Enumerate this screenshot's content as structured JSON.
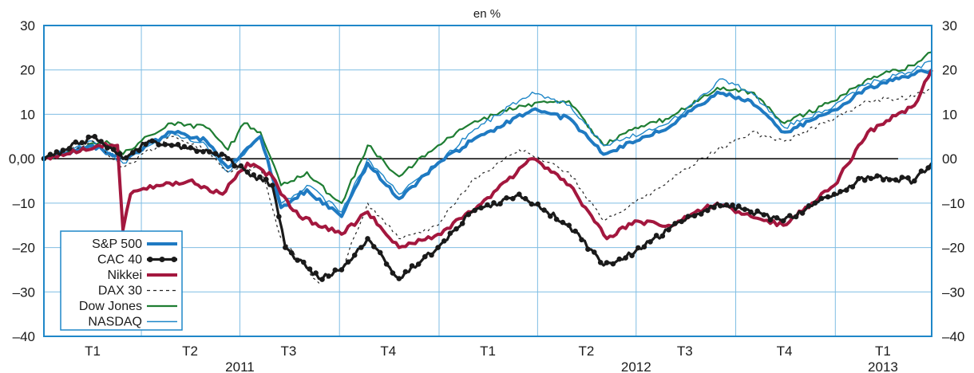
{
  "chart_data": {
    "type": "line",
    "unit_label": "en %",
    "ylim": [
      -40,
      30
    ],
    "y_ticks": [
      {
        "value": 30,
        "left": "30",
        "right": "30"
      },
      {
        "value": 20,
        "left": "20",
        "right": "20"
      },
      {
        "value": 10,
        "left": "10",
        "right": "10"
      },
      {
        "value": 0,
        "left": "0,00",
        "right": "00"
      },
      {
        "value": -10,
        "left": "–10",
        "right": "–10"
      },
      {
        "value": -20,
        "left": "–20",
        "right": "–20"
      },
      {
        "value": -30,
        "left": "–30",
        "right": "–30"
      },
      {
        "value": -40,
        "left": "–40",
        "right": "–40"
      }
    ],
    "x_range": [
      "2011-01-01",
      "2013-03-31"
    ],
    "quarter_labels": [
      {
        "label": "T1",
        "mid": "2011-02-15"
      },
      {
        "label": "T2",
        "mid": "2011-05-16"
      },
      {
        "label": "T3",
        "mid": "2011-08-15"
      },
      {
        "label": "T4",
        "mid": "2011-11-15"
      },
      {
        "label": "T1",
        "mid": "2012-02-15"
      },
      {
        "label": "T2",
        "mid": "2012-05-16"
      },
      {
        "label": "T3",
        "mid": "2012-08-15"
      },
      {
        "label": "T4",
        "mid": "2012-11-15"
      },
      {
        "label": "T1",
        "mid": "2013-02-14"
      }
    ],
    "year_labels": [
      {
        "label": "2011",
        "mid": "2011-07-01"
      },
      {
        "label": "2012",
        "mid": "2012-07-01"
      },
      {
        "label": "2013",
        "mid": "2013-02-14"
      }
    ],
    "grid": true,
    "zero_line": true,
    "legend_position": "bottom-left",
    "series": [
      {
        "name": "Dow Jones",
        "color": "#1e7d32",
        "style": "solid",
        "points": [
          [
            "2011-01-01",
            0
          ],
          [
            "2011-02-01",
            2
          ],
          [
            "2011-02-28",
            4
          ],
          [
            "2011-03-15",
            1
          ],
          [
            "2011-04-01",
            4
          ],
          [
            "2011-04-29",
            8
          ],
          [
            "2011-05-31",
            7
          ],
          [
            "2011-06-20",
            2
          ],
          [
            "2011-07-05",
            8
          ],
          [
            "2011-07-20",
            6
          ],
          [
            "2011-08-08",
            -6
          ],
          [
            "2011-09-01",
            -3
          ],
          [
            "2011-09-22",
            -8
          ],
          [
            "2011-10-03",
            -10
          ],
          [
            "2011-10-27",
            3
          ],
          [
            "2011-11-25",
            -4
          ],
          [
            "2011-12-31",
            3
          ],
          [
            "2012-01-31",
            8
          ],
          [
            "2012-03-15",
            12
          ],
          [
            "2012-04-30",
            13
          ],
          [
            "2012-06-01",
            3
          ],
          [
            "2012-06-30",
            7
          ],
          [
            "2012-07-31",
            9
          ],
          [
            "2012-09-14",
            16
          ],
          [
            "2012-10-15",
            15
          ],
          [
            "2012-11-15",
            8
          ],
          [
            "2012-12-31",
            13
          ],
          [
            "2013-01-31",
            18
          ],
          [
            "2013-03-15",
            21
          ],
          [
            "2013-03-31",
            24
          ]
        ]
      },
      {
        "name": "NASDAQ",
        "color": "#1f87c8",
        "style": "thin",
        "points": [
          [
            "2011-01-01",
            0
          ],
          [
            "2011-02-15",
            4
          ],
          [
            "2011-03-15",
            -1
          ],
          [
            "2011-04-29",
            6
          ],
          [
            "2011-05-31",
            3
          ],
          [
            "2011-06-20",
            -3
          ],
          [
            "2011-07-20",
            5
          ],
          [
            "2011-08-08",
            -10
          ],
          [
            "2011-09-01",
            -6
          ],
          [
            "2011-10-03",
            -12
          ],
          [
            "2011-10-27",
            0
          ],
          [
            "2011-11-25",
            -8
          ],
          [
            "2011-12-31",
            -1
          ],
          [
            "2012-01-31",
            6
          ],
          [
            "2012-03-27",
            15
          ],
          [
            "2012-05-01",
            12
          ],
          [
            "2012-06-01",
            3
          ],
          [
            "2012-07-31",
            8
          ],
          [
            "2012-09-19",
            18
          ],
          [
            "2012-10-15",
            15
          ],
          [
            "2012-11-15",
            7
          ],
          [
            "2012-12-31",
            12
          ],
          [
            "2013-01-31",
            17
          ],
          [
            "2013-03-15",
            20
          ],
          [
            "2013-03-31",
            22
          ]
        ]
      },
      {
        "name": "S&P 500",
        "color": "#1f7ac2",
        "style": "thick",
        "points": [
          [
            "2011-01-01",
            0
          ],
          [
            "2011-02-15",
            3
          ],
          [
            "2011-03-15",
            0
          ],
          [
            "2011-04-29",
            6
          ],
          [
            "2011-05-31",
            4
          ],
          [
            "2011-06-20",
            -2
          ],
          [
            "2011-07-20",
            5
          ],
          [
            "2011-08-08",
            -11
          ],
          [
            "2011-09-01",
            -7
          ],
          [
            "2011-10-03",
            -13
          ],
          [
            "2011-10-27",
            -1
          ],
          [
            "2011-11-25",
            -9
          ],
          [
            "2011-12-31",
            -1
          ],
          [
            "2012-01-31",
            4
          ],
          [
            "2012-03-27",
            11
          ],
          [
            "2012-05-01",
            9
          ],
          [
            "2012-06-01",
            1
          ],
          [
            "2012-07-31",
            7
          ],
          [
            "2012-09-14",
            15
          ],
          [
            "2012-10-15",
            13
          ],
          [
            "2012-11-15",
            6
          ],
          [
            "2012-12-31",
            11
          ],
          [
            "2013-01-31",
            16
          ],
          [
            "2013-03-15",
            19
          ],
          [
            "2013-03-31",
            20
          ]
        ]
      },
      {
        "name": "DAX 30",
        "color": "#222222",
        "style": "dashed",
        "points": [
          [
            "2011-01-01",
            0
          ],
          [
            "2011-02-15",
            4
          ],
          [
            "2011-03-15",
            -2
          ],
          [
            "2011-04-29",
            5
          ],
          [
            "2011-05-31",
            2
          ],
          [
            "2011-06-20",
            -3
          ],
          [
            "2011-07-20",
            -2
          ],
          [
            "2011-08-08",
            -18
          ],
          [
            "2011-09-12",
            -28
          ],
          [
            "2011-10-03",
            -25
          ],
          [
            "2011-10-27",
            -10
          ],
          [
            "2011-11-25",
            -18
          ],
          [
            "2011-12-31",
            -15
          ],
          [
            "2012-01-31",
            -5
          ],
          [
            "2012-03-15",
            2
          ],
          [
            "2012-04-30",
            -3
          ],
          [
            "2012-06-01",
            -14
          ],
          [
            "2012-06-30",
            -10
          ],
          [
            "2012-07-31",
            -5
          ],
          [
            "2012-09-14",
            2
          ],
          [
            "2012-10-15",
            6
          ],
          [
            "2012-11-15",
            4
          ],
          [
            "2012-12-31",
            9
          ],
          [
            "2013-01-31",
            13
          ],
          [
            "2013-03-15",
            14
          ],
          [
            "2013-03-31",
            16
          ]
        ]
      },
      {
        "name": "Nikkei",
        "color": "#a3173e",
        "style": "thick",
        "points": [
          [
            "2011-01-01",
            0
          ],
          [
            "2011-02-21",
            3
          ],
          [
            "2011-03-10",
            3
          ],
          [
            "2011-03-15",
            -16
          ],
          [
            "2011-03-22",
            -8
          ],
          [
            "2011-04-15",
            -6
          ],
          [
            "2011-05-15",
            -5
          ],
          [
            "2011-06-15",
            -8
          ],
          [
            "2011-07-08",
            -1
          ],
          [
            "2011-07-31",
            -4
          ],
          [
            "2011-08-08",
            -8
          ],
          [
            "2011-08-25",
            -13
          ],
          [
            "2011-10-03",
            -17
          ],
          [
            "2011-10-27",
            -12
          ],
          [
            "2011-11-25",
            -20
          ],
          [
            "2011-12-31",
            -17
          ],
          [
            "2012-01-31",
            -12
          ],
          [
            "2012-03-27",
            0
          ],
          [
            "2012-05-01",
            -6
          ],
          [
            "2012-06-04",
            -18
          ],
          [
            "2012-06-30",
            -14
          ],
          [
            "2012-07-31",
            -15
          ],
          [
            "2012-09-14",
            -10
          ],
          [
            "2012-10-15",
            -13
          ],
          [
            "2012-11-14",
            -15
          ],
          [
            "2012-12-31",
            -6
          ],
          [
            "2013-01-31",
            6
          ],
          [
            "2013-03-15",
            12
          ],
          [
            "2013-03-31",
            20
          ]
        ]
      },
      {
        "name": "CAC 40",
        "color": "#1a1a1a",
        "style": "dots",
        "points": [
          [
            "2011-01-01",
            0
          ],
          [
            "2011-02-17",
            5
          ],
          [
            "2011-03-15",
            0
          ],
          [
            "2011-04-08",
            4
          ],
          [
            "2011-05-02",
            3
          ],
          [
            "2011-05-31",
            2
          ],
          [
            "2011-06-20",
            0
          ],
          [
            "2011-07-08",
            -3
          ],
          [
            "2011-07-31",
            -6
          ],
          [
            "2011-08-12",
            -20
          ],
          [
            "2011-09-12",
            -27
          ],
          [
            "2011-10-03",
            -25
          ],
          [
            "2011-10-27",
            -18
          ],
          [
            "2011-11-25",
            -27
          ],
          [
            "2011-12-31",
            -20
          ],
          [
            "2012-01-31",
            -12
          ],
          [
            "2012-03-15",
            -8
          ],
          [
            "2012-04-30",
            -15
          ],
          [
            "2012-06-01",
            -24
          ],
          [
            "2012-06-30",
            -21
          ],
          [
            "2012-07-31",
            -16
          ],
          [
            "2012-09-14",
            -10
          ],
          [
            "2012-10-15",
            -12
          ],
          [
            "2012-11-14",
            -14
          ],
          [
            "2012-12-31",
            -8
          ],
          [
            "2013-01-31",
            -4
          ],
          [
            "2013-03-15",
            -5
          ],
          [
            "2013-03-31",
            -1
          ]
        ]
      }
    ],
    "legend": [
      {
        "name": "S&P 500",
        "style": "thick",
        "color": "#1f7ac2"
      },
      {
        "name": "CAC 40",
        "style": "dots",
        "color": "#1a1a1a"
      },
      {
        "name": "Nikkei",
        "style": "thick",
        "color": "#a3173e"
      },
      {
        "name": "DAX 30",
        "style": "dashed",
        "color": "#222222"
      },
      {
        "name": "Dow Jones",
        "style": "solid",
        "color": "#1e7d32"
      },
      {
        "name": "NASDAQ",
        "style": "thin",
        "color": "#1f87c8"
      }
    ]
  }
}
